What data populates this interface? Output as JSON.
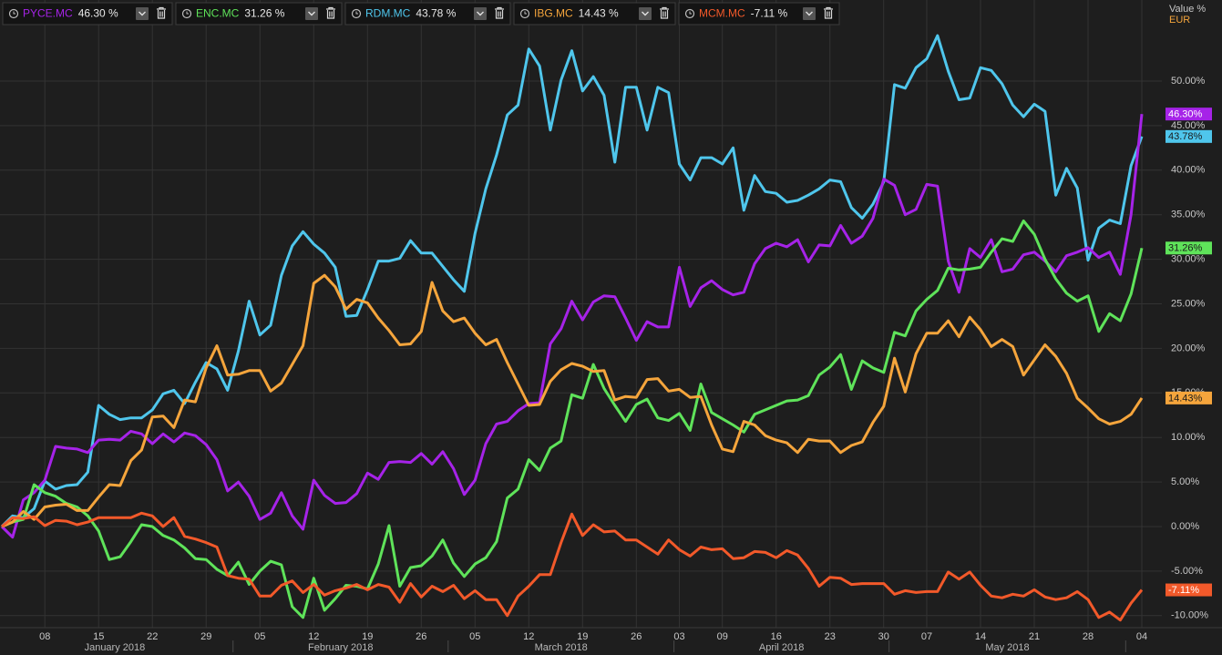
{
  "chart_data": {
    "type": "line",
    "y_axis_title": "Value %",
    "y_axis_unit": "EUR",
    "grid": true,
    "ylim": [
      -11.35,
      59.1
    ],
    "yticks": [
      {
        "value": 50,
        "label": "50.00%"
      },
      {
        "value": 45,
        "label": "45.00%"
      },
      {
        "value": 40,
        "label": "40.00%"
      },
      {
        "value": 35,
        "label": "35.00%"
      },
      {
        "value": 30,
        "label": "30.00%"
      },
      {
        "value": 25,
        "label": "25.00%"
      },
      {
        "value": 20,
        "label": "20.00%"
      },
      {
        "value": 15,
        "label": "15.00%"
      },
      {
        "value": 10,
        "label": "10.00%"
      },
      {
        "value": 5,
        "label": "5.00%"
      },
      {
        "value": 0,
        "label": "0.00%"
      },
      {
        "value": -5,
        "label": "-5.00%"
      },
      {
        "value": -10,
        "label": "-10.00%"
      }
    ],
    "categories": [
      null,
      null,
      null,
      null,
      "08",
      null,
      null,
      null,
      null,
      "15",
      null,
      null,
      null,
      null,
      "22",
      null,
      null,
      null,
      null,
      "29",
      null,
      null,
      null,
      null,
      "05",
      null,
      null,
      null,
      null,
      "12",
      null,
      null,
      null,
      null,
      "19",
      null,
      null,
      null,
      null,
      "26",
      null,
      null,
      null,
      null,
      "05",
      null,
      null,
      null,
      null,
      "12",
      null,
      null,
      null,
      null,
      "19",
      null,
      null,
      null,
      null,
      "26",
      null,
      null,
      null,
      "03",
      null,
      null,
      null,
      "09",
      null,
      null,
      null,
      null,
      "16",
      null,
      null,
      null,
      null,
      "23",
      null,
      null,
      null,
      null,
      "30",
      null,
      null,
      null,
      "07",
      null,
      null,
      null,
      null,
      "14",
      null,
      null,
      null,
      null,
      "21",
      null,
      null,
      null,
      null,
      "28",
      null,
      null,
      null,
      null,
      "04"
    ],
    "months": [
      "January 2018",
      "January 2018",
      "January 2018",
      "January 2018",
      "January 2018",
      "January 2018",
      "January 2018",
      "January 2018",
      "January 2018",
      "January 2018",
      "January 2018",
      "January 2018",
      "January 2018",
      "January 2018",
      "January 2018",
      "January 2018",
      "January 2018",
      "January 2018",
      "January 2018",
      "January 2018",
      "January 2018",
      "January 2018",
      "February 2018",
      "February 2018",
      "February 2018",
      "February 2018",
      "February 2018",
      "February 2018",
      "February 2018",
      "February 2018",
      "February 2018",
      "February 2018",
      "February 2018",
      "February 2018",
      "February 2018",
      "February 2018",
      "February 2018",
      "February 2018",
      "February 2018",
      "February 2018",
      "February 2018",
      "February 2018",
      "March 2018",
      "March 2018",
      "March 2018",
      "March 2018",
      "March 2018",
      "March 2018",
      "March 2018",
      "March 2018",
      "March 2018",
      "March 2018",
      "March 2018",
      "March 2018",
      "March 2018",
      "March 2018",
      "March 2018",
      "March 2018",
      "March 2018",
      "March 2018",
      "March 2018",
      "March 2018",
      "March 2018",
      "April 2018",
      "April 2018",
      "April 2018",
      "April 2018",
      "April 2018",
      "April 2018",
      "April 2018",
      "April 2018",
      "April 2018",
      "April 2018",
      "April 2018",
      "April 2018",
      "April 2018",
      "April 2018",
      "April 2018",
      "April 2018",
      "April 2018",
      "April 2018",
      "April 2018",
      "April 2018",
      "May 2018",
      "May 2018",
      "May 2018",
      "May 2018",
      "May 2018",
      "May 2018",
      "May 2018",
      "May 2018",
      "May 2018",
      "May 2018",
      "May 2018",
      "May 2018",
      "May 2018",
      "May 2018",
      "May 2018",
      "May 2018",
      "May 2018",
      "May 2018",
      "May 2018",
      "May 2018",
      "May 2018",
      "May 2018",
      null,
      null
    ],
    "series": [
      {
        "name": "PYCE.MC",
        "color": "#a623e8",
        "legend_value": "46.30 %",
        "end_label": "46.30%",
        "values": [
          0,
          -1.2,
          3,
          3.8,
          5.2,
          9,
          8.8,
          8.7,
          8.3,
          9.7,
          9.8,
          9.7,
          10.7,
          10.4,
          9.3,
          10.4,
          9.5,
          10.5,
          10.2,
          9.2,
          7.5,
          4,
          5,
          3.4,
          0.8,
          1.5,
          3.8,
          1.2,
          -0.3,
          5.2,
          3.5,
          2.6,
          2.7,
          3.7,
          6,
          5.3,
          7.2,
          7.3,
          7.2,
          8.2,
          7,
          8.4,
          6.5,
          3.6,
          5.2,
          9.3,
          11.5,
          11.8,
          13,
          13.8,
          13.9,
          20.5,
          22.2,
          25.3,
          23.2,
          25.2,
          25.9,
          25.8,
          23.4,
          20.9,
          23,
          22.4,
          22.4,
          29.1,
          24.7,
          26.8,
          27.6,
          26.6,
          26,
          26.3,
          29.5,
          31.2,
          31.8,
          31.4,
          32.2,
          29.7,
          31.6,
          31.5,
          33.8,
          31.8,
          32.6,
          34.6,
          39,
          38.3,
          35,
          35.6,
          38.4,
          38.2,
          29.8,
          26.3,
          31.2,
          30.2,
          32.2,
          28.6,
          28.9,
          30.5,
          30.8,
          29.8,
          28.6,
          30.4,
          30.8,
          31.3,
          30.2,
          30.8,
          28.3,
          35,
          46.3
        ]
      },
      {
        "name": "ENC.MC",
        "color": "#5fe35a",
        "legend_value": "31.26 %",
        "end_label": "31.26%",
        "values": [
          0,
          0.5,
          0.8,
          4.7,
          3.8,
          3.4,
          2.6,
          2.2,
          1.2,
          -0.5,
          -3.7,
          -3.4,
          -1.7,
          0.2,
          0,
          -1,
          -1.5,
          -2.4,
          -3.6,
          -3.7,
          -4.8,
          -5.5,
          -4,
          -6.5,
          -5,
          -3.9,
          -4.3,
          -9,
          -10.2,
          -5.8,
          -9.4,
          -8.1,
          -6.6,
          -6.7,
          -7,
          -4.2,
          0.1,
          -6.7,
          -4.6,
          -4.4,
          -3.3,
          -1.5,
          -4.1,
          -5.6,
          -4.2,
          -3.5,
          -1.7,
          3.2,
          4.2,
          7.5,
          6.3,
          8.8,
          9.6,
          14.8,
          14.4,
          18.2,
          15.5,
          13.6,
          11.8,
          13.7,
          14.3,
          12.2,
          11.9,
          12.7,
          10.8,
          16,
          12.8,
          12.1,
          11.4,
          10.6,
          12.6,
          13.1,
          13.6,
          14.1,
          14.2,
          14.7,
          17,
          17.9,
          19.3,
          15.4,
          18.6,
          17.8,
          17.3,
          21.8,
          21.4,
          24.2,
          25.5,
          26.5,
          29,
          28.8,
          28.9,
          29.1,
          30.8,
          32.3,
          32,
          34.3,
          32.8,
          30,
          27.8,
          26.2,
          25.3,
          25.9,
          21.9,
          23.9,
          23.1,
          26.1,
          31.26
        ]
      },
      {
        "name": "RDM.MC",
        "color": "#4fc6ec",
        "legend_value": "43.78 %",
        "end_label": "43.78%",
        "values": [
          0,
          1.2,
          1,
          2,
          5.1,
          4.2,
          4.6,
          4.7,
          6.1,
          13.6,
          12.6,
          12,
          12.2,
          12.2,
          13.1,
          14.9,
          15.3,
          13.8,
          16.2,
          18.4,
          17.7,
          15.3,
          19.7,
          25.3,
          21.5,
          22.6,
          28.2,
          31.5,
          33.1,
          31.7,
          30.7,
          29.1,
          23.6,
          23.7,
          26.6,
          29.8,
          29.8,
          30.1,
          32.1,
          30.7,
          30.7,
          29.2,
          27.7,
          26.4,
          32.9,
          37.9,
          41.7,
          46.2,
          47.3,
          53.6,
          51.7,
          44.5,
          50.1,
          53.4,
          48.9,
          50.5,
          48.4,
          40.9,
          49.3,
          49.3,
          44.5,
          49.3,
          48.7,
          40.7,
          38.9,
          41.4,
          41.4,
          40.7,
          42.5,
          35.5,
          39.4,
          37.6,
          37.4,
          36.4,
          36.6,
          37.2,
          37.9,
          38.9,
          38.7,
          35.8,
          34.6,
          36.2,
          38.7,
          49.6,
          49.2,
          51.5,
          52.5,
          55.1,
          51.1,
          47.9,
          48.1,
          51.5,
          51.2,
          49.7,
          47.3,
          46,
          47.4,
          46.6,
          37.2,
          40.2,
          38,
          29.9,
          33.5,
          34.4,
          34,
          40.5,
          43.78
        ]
      },
      {
        "name": "IBG.MC",
        "color": "#f5a53c",
        "legend_value": "14.43 %",
        "end_label": "14.43%",
        "values": [
          0,
          0.5,
          1.7,
          0.8,
          2.2,
          2.4,
          2.5,
          1.8,
          1.8,
          3.3,
          4.7,
          4.6,
          7.4,
          8.6,
          12.3,
          12.4,
          11.1,
          14.2,
          14,
          17.8,
          20.3,
          17,
          17.1,
          17.5,
          17.5,
          15.2,
          16.1,
          18.2,
          20.3,
          27.3,
          28.2,
          26.9,
          24.4,
          25.5,
          25.1,
          23.4,
          22,
          20.4,
          20.5,
          21.9,
          27.4,
          24.2,
          23,
          23.4,
          21.7,
          20.4,
          21,
          18.4,
          16,
          13.6,
          13.7,
          16.3,
          17.6,
          18.3,
          18,
          17.4,
          17.5,
          14.2,
          14.6,
          14.5,
          16.5,
          16.6,
          15.2,
          15.4,
          14.5,
          14.6,
          11.4,
          8.7,
          8.4,
          11.8,
          11.4,
          10.2,
          9.7,
          9.4,
          8.3,
          9.8,
          9.6,
          9.6,
          8.3,
          9.1,
          9.5,
          11.7,
          13.5,
          18.9,
          15.1,
          19.4,
          21.7,
          21.7,
          23.1,
          21.3,
          23.5,
          22.1,
          20.2,
          21,
          20.2,
          17,
          18.7,
          20.4,
          19.1,
          17.2,
          14.4,
          13.3,
          12.1,
          11.5,
          11.8,
          12.6,
          14.43
        ]
      },
      {
        "name": "MCM.MC",
        "color": "#f2592a",
        "legend_value": "-7.11 %",
        "end_label": "-7.11%",
        "values": [
          0,
          1,
          0.9,
          1.1,
          0.1,
          0.7,
          0.6,
          0.2,
          0.5,
          1,
          1,
          1,
          1,
          1.5,
          1.2,
          0,
          1,
          -1.1,
          -1.4,
          -1.8,
          -2.3,
          -5.5,
          -5.8,
          -5.9,
          -7.8,
          -7.8,
          -6.6,
          -6.1,
          -7.4,
          -6.5,
          -7.7,
          -7.2,
          -6.9,
          -6.5,
          -7.1,
          -6.5,
          -6.8,
          -8.5,
          -6.4,
          -7.9,
          -6.7,
          -7.3,
          -6.6,
          -8.1,
          -7.2,
          -8.2,
          -8.2,
          -10,
          -7.8,
          -6.7,
          -5.4,
          -5.4,
          -1.8,
          1.4,
          -1,
          0.2,
          -0.6,
          -0.5,
          -1.5,
          -1.5,
          -2.3,
          -3.1,
          -1.5,
          -2.6,
          -3.3,
          -2.3,
          -2.6,
          -2.5,
          -3.6,
          -3.5,
          -2.8,
          -2.9,
          -3.5,
          -2.7,
          -3.2,
          -4.7,
          -6.7,
          -5.7,
          -5.8,
          -6.5,
          -6.4,
          -6.4,
          -6.4,
          -7.6,
          -7.2,
          -7.4,
          -7.3,
          -7.3,
          -5.1,
          -5.9,
          -5.1,
          -6.6,
          -7.8,
          -8,
          -7.6,
          -7.8,
          -7.1,
          -7.9,
          -8.2,
          -8,
          -7.3,
          -8.2,
          -10.2,
          -9.6,
          -10.5,
          -8.6,
          -7.11
        ]
      }
    ]
  }
}
